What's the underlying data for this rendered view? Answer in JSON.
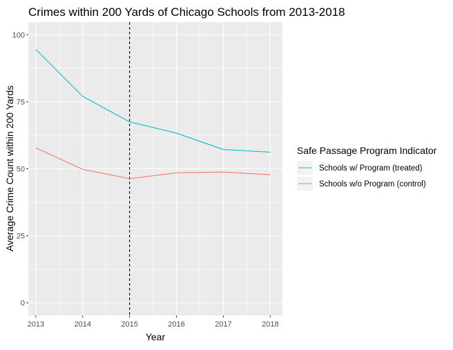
{
  "chart_data": {
    "type": "line",
    "title": "Crimes within 200 Yards of Chicago Schools from 2013-2018",
    "xlabel": "Year",
    "ylabel": "Average Crime Count within 200 Yards",
    "x": [
      2013,
      2014,
      2015,
      2016,
      2017,
      2018
    ],
    "xlim": [
      2012.84,
      2018.26
    ],
    "ylim": [
      -4.7,
      104.7
    ],
    "y_ticks": [
      0,
      25,
      50,
      75,
      100
    ],
    "x_ticks": [
      2013,
      2014,
      2015,
      2016,
      2017,
      2018
    ],
    "vline": {
      "x": 2015,
      "style": "dashed",
      "color": "#000000"
    },
    "grid": true,
    "legend": {
      "title": "Safe Passage Program Indicator",
      "placement": "right"
    },
    "series": [
      {
        "name": "Schools w/ Program (treated)",
        "color": "#00BFC4",
        "values": [
          94.5,
          77.0,
          67.5,
          63.3,
          57.2,
          56.2
        ]
      },
      {
        "name": "Schools w/o Program (control)",
        "color": "#F8766D",
        "values": [
          57.8,
          49.8,
          46.3,
          48.5,
          48.8,
          47.8
        ]
      }
    ]
  }
}
